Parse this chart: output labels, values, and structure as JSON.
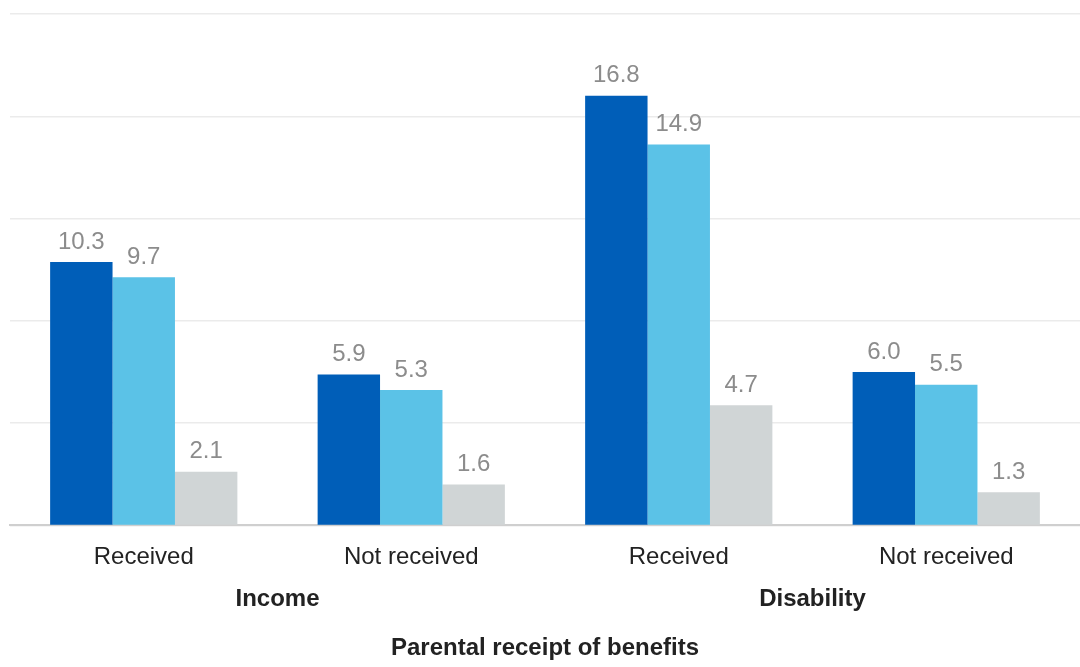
{
  "chart_data": {
    "type": "bar",
    "xlabel": "Parental receipt of benefits",
    "categories": [
      "Received",
      "Not received",
      "Received",
      "Not received"
    ],
    "series": [
      {
        "color": "#005eb8",
        "values": [
          10.3,
          5.9,
          16.8,
          6.0
        ],
        "value_labels": [
          "10.3",
          "5.9",
          "16.8",
          "6.0"
        ]
      },
      {
        "color": "#5bc2e7",
        "values": [
          9.7,
          5.3,
          14.9,
          5.5
        ],
        "value_labels": [
          "9.7",
          "5.3",
          "14.9",
          "5.5"
        ]
      },
      {
        "color": "#d0d5d6",
        "values": [
          2.1,
          1.6,
          4.7,
          1.3
        ],
        "value_labels": [
          "2.1",
          "1.6",
          "4.7",
          "1.3"
        ]
      }
    ],
    "annotations": [
      "Income",
      "Disability"
    ],
    "ylim": [
      0,
      20
    ],
    "yticks": [
      {
        "value": 0,
        "label": null
      },
      {
        "value": 4,
        "label": null
      },
      {
        "value": 8,
        "label": null
      },
      {
        "value": 12,
        "label": null
      },
      {
        "value": 16,
        "label": null
      },
      {
        "value": 20,
        "label": null
      }
    ],
    "tick_labels": "x",
    "grid": "y",
    "legend": false
  }
}
